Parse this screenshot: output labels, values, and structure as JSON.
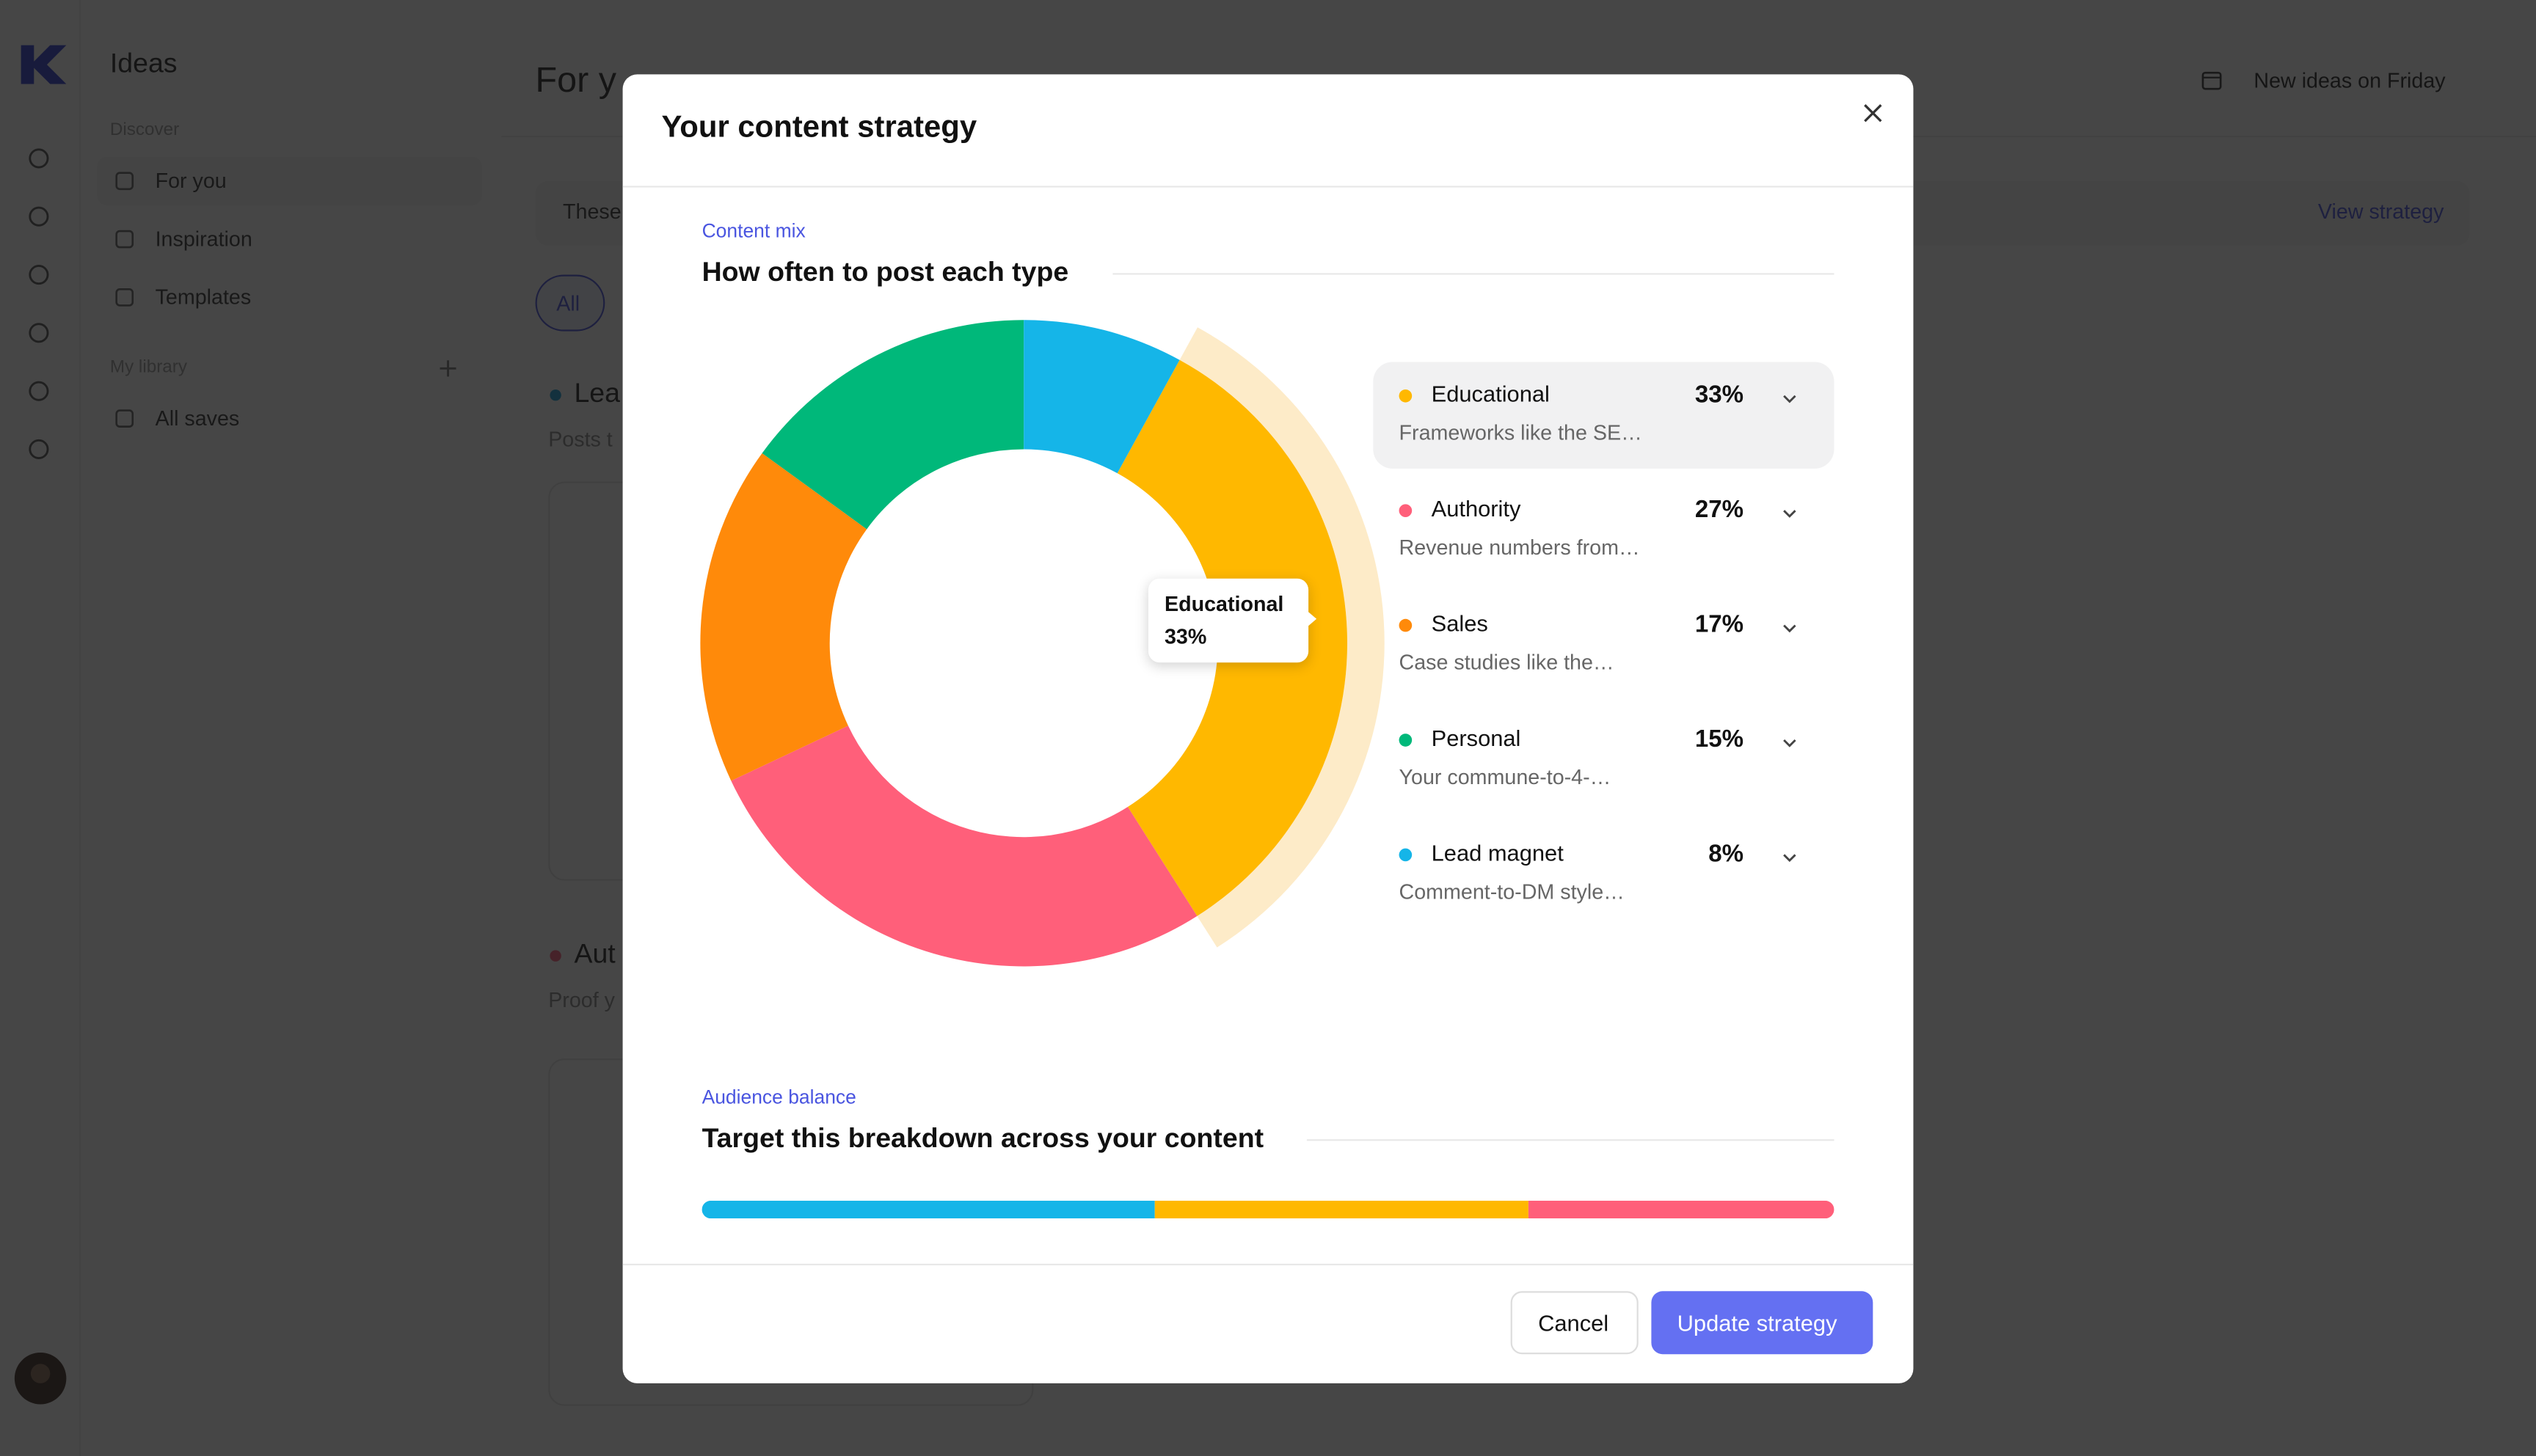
{
  "sidebar": {
    "title": "Ideas",
    "sections": [
      {
        "label": "Discover",
        "items": [
          "For you",
          "Inspiration",
          "Templates"
        ]
      },
      {
        "label": "My library",
        "items": [
          "All saves"
        ]
      }
    ]
  },
  "background": {
    "heading": "For y",
    "notice": "New ideas on Friday",
    "banner": "These",
    "banner_link": "View strategy",
    "filter": "All",
    "groups": [
      {
        "name": "Lea",
        "description": "Posts t",
        "color": "#1a9fd8"
      },
      {
        "name": "Aut",
        "description": "Proof y",
        "color": "#ff5c7a"
      }
    ]
  },
  "modal": {
    "title": "Your content strategy",
    "cancel": "Cancel",
    "confirm": "Update strategy"
  },
  "chart_data": [
    {
      "type": "donut",
      "label": "Content mix",
      "title": "How often to post each type",
      "categories": [
        "Educational",
        "Authority",
        "Sales",
        "Personal",
        "Lead magnet"
      ],
      "values": [
        33,
        27,
        17,
        15,
        8
      ],
      "value_labels": [
        "33%",
        "27%",
        "17%",
        "15%",
        "8%"
      ],
      "descriptions": [
        "Frameworks like the SE…",
        "Revenue numbers from…",
        "Case studies like the…",
        "Your commune-to-4-…",
        "Comment-to-DM style…"
      ],
      "colors": [
        "#ffb800",
        "#ff5f7a",
        "#ff8a0a",
        "#00b87a",
        "#15b5e8"
      ]
    },
    {
      "type": "stacked-bar",
      "label": "Audience balance",
      "title": "Target this breakdown across your content",
      "values": [
        40,
        33,
        27
      ],
      "colors": [
        "#15b5e8",
        "#ffb800",
        "#ff5f7a"
      ],
      "xlim": [
        0,
        100
      ]
    }
  ]
}
